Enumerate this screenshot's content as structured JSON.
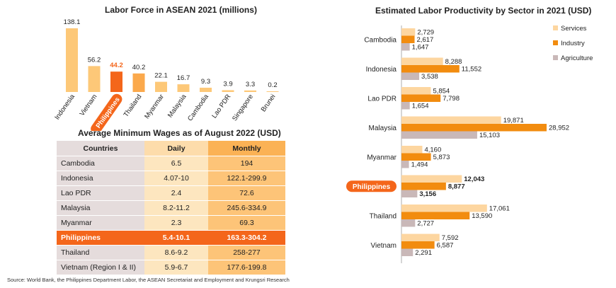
{
  "source": "Source: World Bank, the Philippines Department Labor, the ASEAN Secretariat and Employment and Krungsri Research",
  "colors": {
    "bar_light": "#fdc878",
    "bar_highlight": "#f4661b",
    "bar_mid": "#fba94c",
    "services": "#fdd6a0",
    "industry": "#f28c0f",
    "agriculture": "#c9b8b8",
    "badge": "#f4661b"
  },
  "chart_data": [
    {
      "type": "bar",
      "title": "Labor Force in ASEAN 2021 (millions)",
      "categories": [
        "Indonesia",
        "Vietnam",
        "Philippines",
        "Thailand",
        "Myanmar",
        "Malaysia",
        "Cambodia",
        "Lao PDR",
        "Singapore",
        "Brunei"
      ],
      "values": [
        138.1,
        56.2,
        44.2,
        40.2,
        22.1,
        16.7,
        9.3,
        3.9,
        3.3,
        0.2
      ],
      "value_labels": [
        "138.1",
        "56.2",
        "44.2",
        "40.2",
        "22.1",
        "16.7",
        "9.3",
        "3.9",
        "3.3",
        "0.2"
      ],
      "highlight": "Philippines",
      "grid": false
    },
    {
      "type": "table",
      "title": "Average Minimum Wages as of August 2022 (USD)",
      "columns": [
        "Countries",
        "Daily",
        "Monthly"
      ],
      "rows": [
        [
          "Cambodia",
          "6.5",
          "194"
        ],
        [
          "Indonesia",
          "4.07-10",
          "122.1-299.9"
        ],
        [
          "Lao PDR",
          "2.4",
          "72.6"
        ],
        [
          "Malaysia",
          "8.2-11.2",
          "245.6-334.9"
        ],
        [
          "Myanmar",
          "2.3",
          "69.3"
        ],
        [
          "Philippines",
          "5.4-10.1",
          "163.3-304.2"
        ],
        [
          "Thailand",
          "8.6-9.2",
          "258-277"
        ],
        [
          "Vietnam (Region I & II)",
          "5.9-6.7",
          "177.6-199.8"
        ]
      ],
      "highlight_row": "Philippines"
    },
    {
      "type": "bar",
      "orientation": "horizontal",
      "title": "Estimated Labor Productivity by Sector in 2021 (USD)",
      "categories": [
        "Cambodia",
        "Indonesia",
        "Lao PDR",
        "Malaysia",
        "Myanmar",
        "Philippines",
        "Thailand",
        "Vietnam"
      ],
      "series": [
        {
          "name": "Services",
          "values": [
            2729,
            8288,
            5854,
            19871,
            4160,
            12043,
            17061,
            7592
          ],
          "labels": [
            "2,729",
            "8,288",
            "5,854",
            "19,871",
            "4,160",
            "12,043",
            "17,061",
            "7,592"
          ]
        },
        {
          "name": "Industry",
          "values": [
            2617,
            11552,
            7798,
            28952,
            5873,
            8877,
            13590,
            6587
          ],
          "labels": [
            "2,617",
            "11,552",
            "7,798",
            "28,952",
            "5,873",
            "8,877",
            "13,590",
            "6,587"
          ]
        },
        {
          "name": "Agriculture",
          "values": [
            1647,
            3538,
            1654,
            15103,
            1494,
            3156,
            2727,
            2291
          ],
          "labels": [
            "1,647",
            "3,538",
            "1,654",
            "15,103",
            "1,494",
            "3,156",
            "2,727",
            "2,291"
          ]
        }
      ],
      "highlight": "Philippines",
      "legend": "top-right",
      "grid": false
    }
  ]
}
